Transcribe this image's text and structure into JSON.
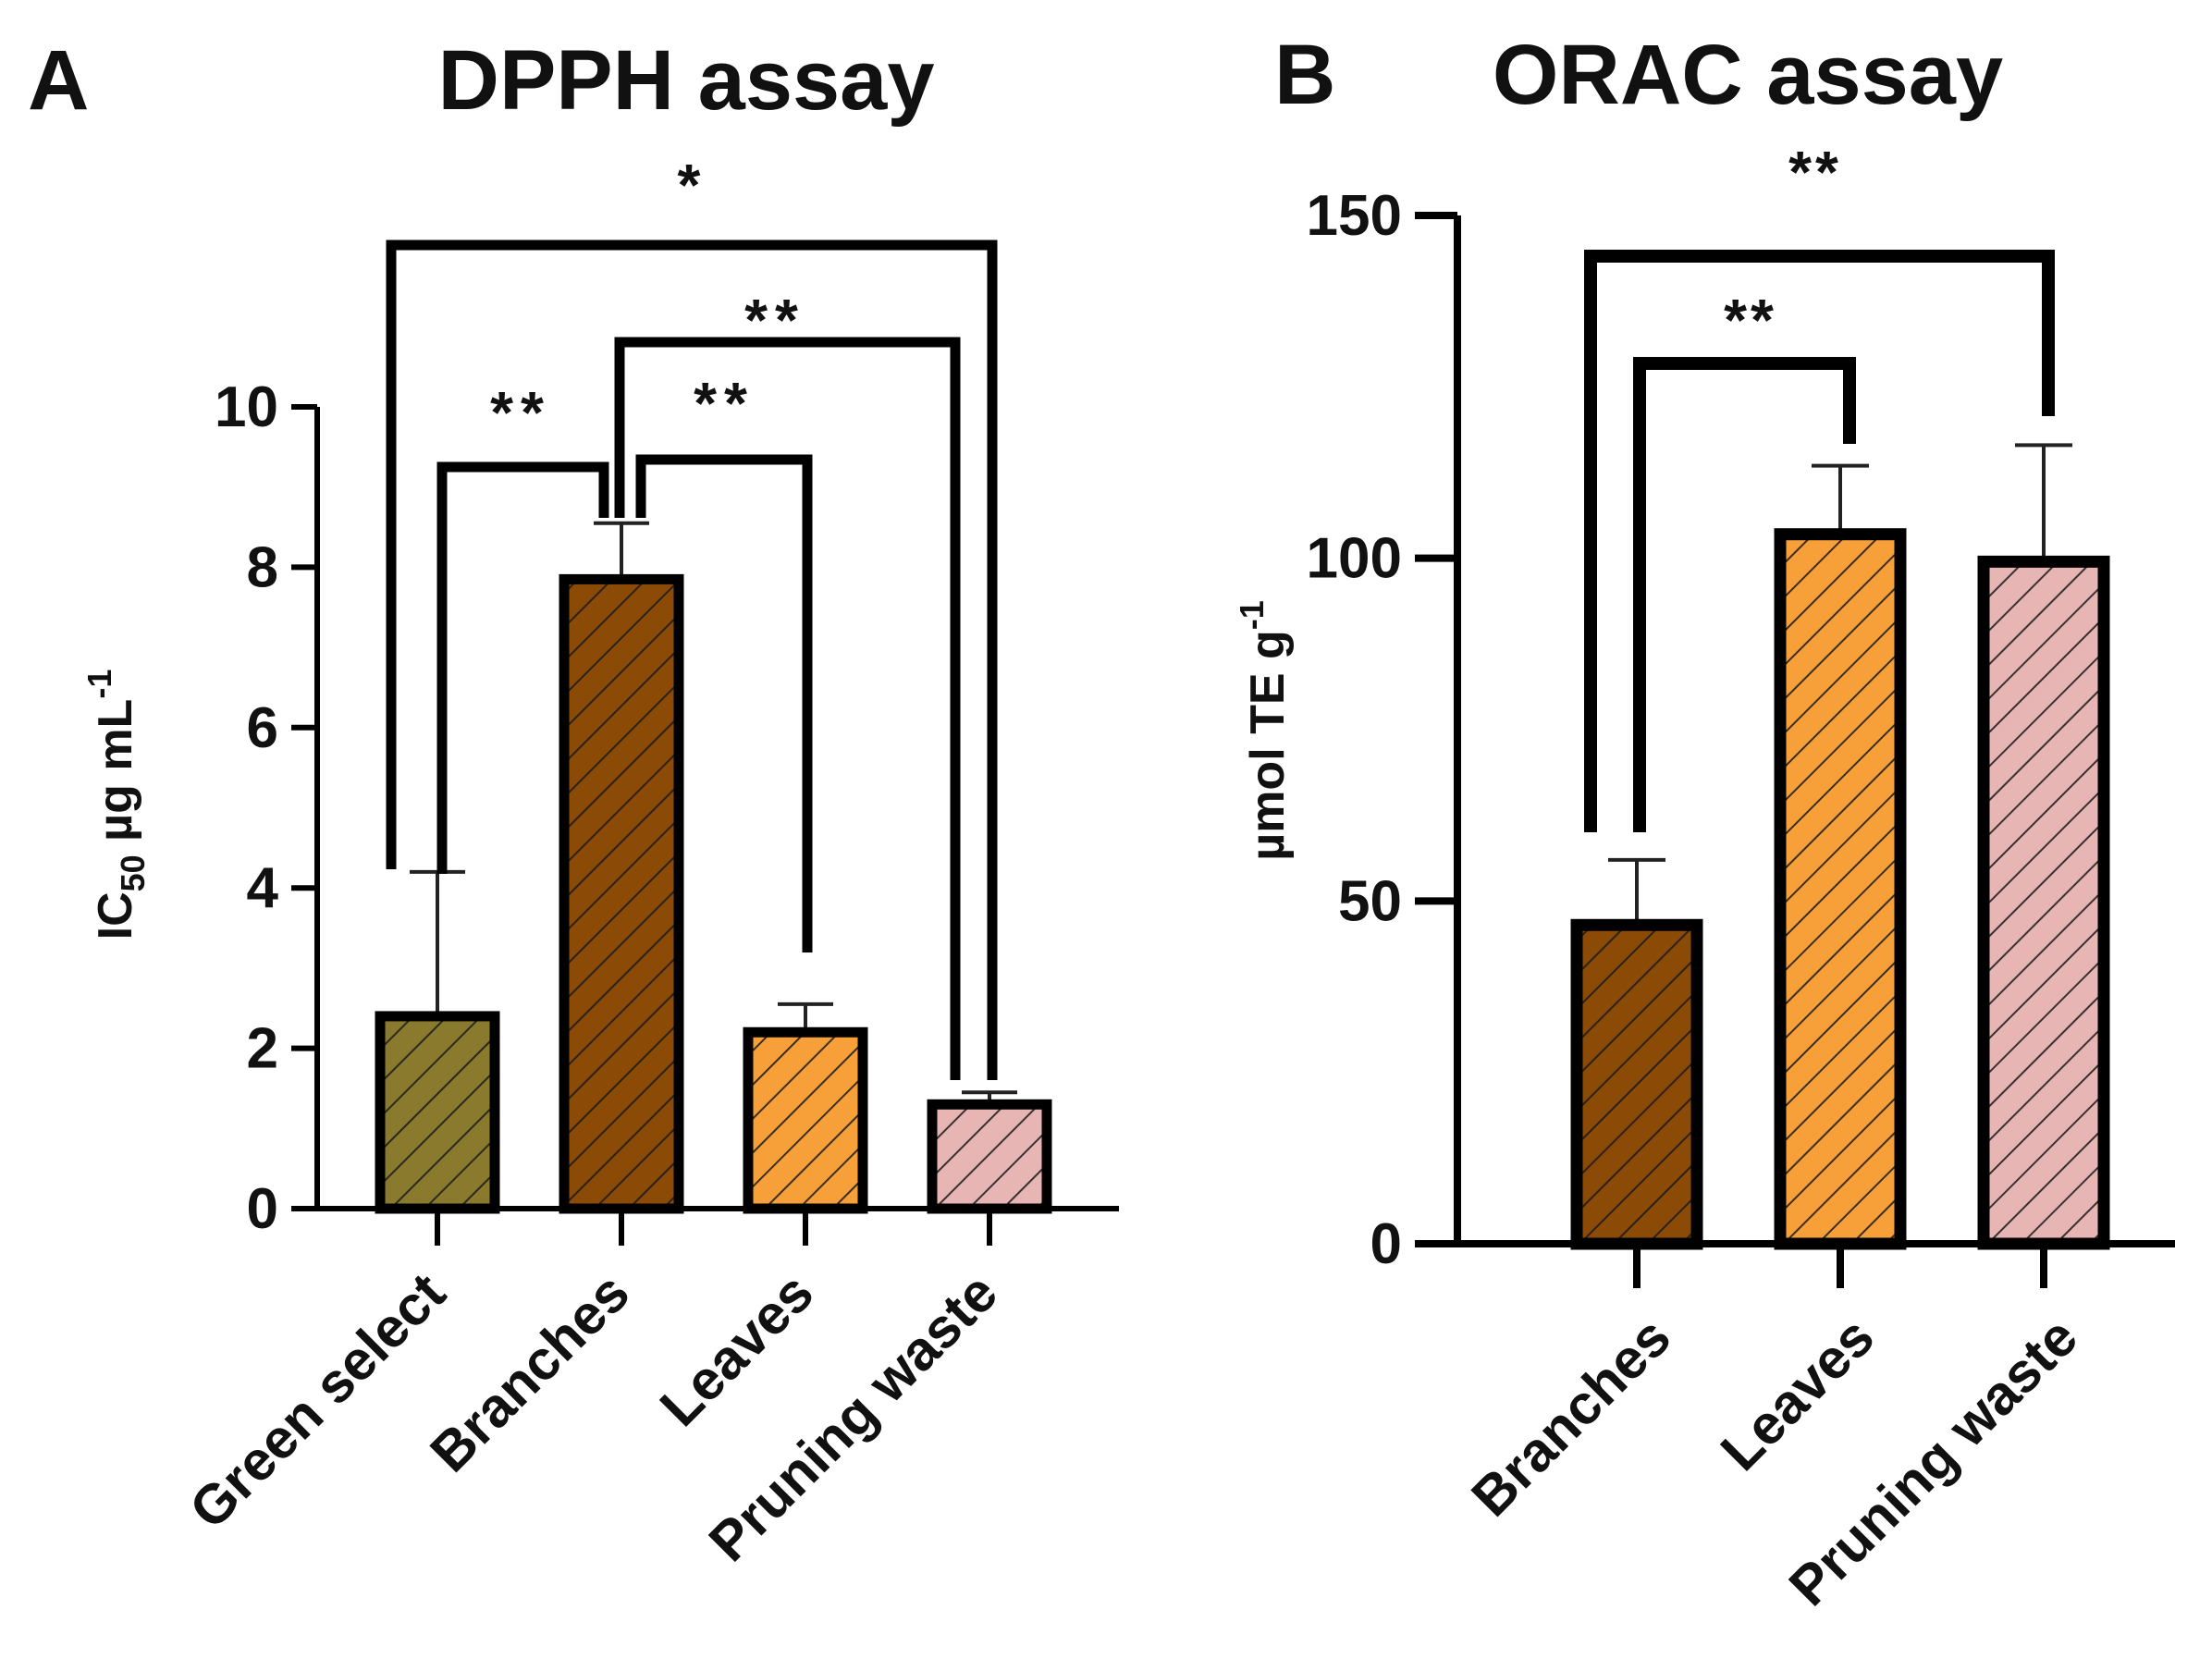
{
  "chart_data": [
    {
      "type": "bar",
      "panel": "A",
      "title": "DPPH assay",
      "ylabel_main": "IC",
      "ylabel_sub": "50",
      "ylabel_rest": " µg mL",
      "ylabel_sup": "-1",
      "ylim": [
        0,
        10
      ],
      "yticks": [
        "0",
        "2",
        "4",
        "6",
        "8",
        "10"
      ],
      "categories": [
        "Green select",
        "Branches",
        "Leaves",
        "Pruning waste"
      ],
      "values": [
        2.4,
        7.85,
        2.2,
        1.3
      ],
      "errors": [
        1.8,
        0.7,
        0.35,
        0.15
      ],
      "colors": [
        "#8a7a2e",
        "#8b4a06",
        "#f7a03a",
        "#e7b5b3"
      ],
      "comparisons": [
        {
          "from": "Green select",
          "to": "Branches",
          "label": "**"
        },
        {
          "from": "Branches",
          "to": "Leaves",
          "label": "**"
        },
        {
          "from": "Branches",
          "to": "Pruning waste",
          "label": "**"
        },
        {
          "from": "Green select",
          "to": "Pruning waste",
          "label": "*"
        }
      ]
    },
    {
      "type": "bar",
      "panel": "B",
      "title": "ORAC assay",
      "ylabel": "µmol TE g",
      "ylabel_sup": "-1",
      "ylim": [
        0,
        150
      ],
      "yticks": [
        "0",
        "50",
        "100",
        "150"
      ],
      "categories": [
        "Branches",
        "Leaves",
        "Pruning waste"
      ],
      "values": [
        46.5,
        103.5,
        99.5
      ],
      "errors": [
        9.5,
        10,
        17
      ],
      "colors": [
        "#8b4a06",
        "#f7a03a",
        "#e7b5b3"
      ],
      "comparisons": [
        {
          "from": "Branches",
          "to": "Leaves",
          "label": "**"
        },
        {
          "from": "Branches",
          "to": "Pruning waste",
          "label": "**"
        }
      ]
    }
  ]
}
